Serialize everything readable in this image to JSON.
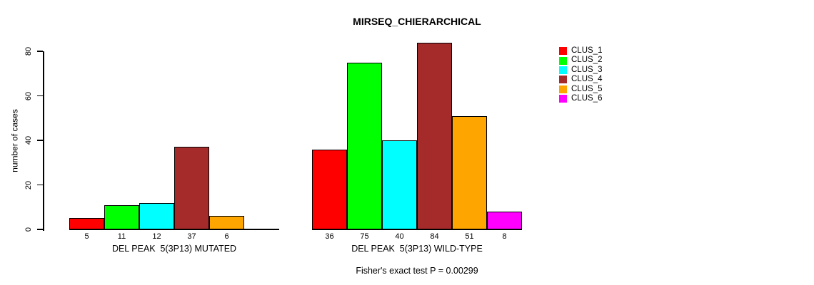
{
  "background": "#FFFFFF",
  "chart_data": {
    "type": "bar",
    "title": "MIRSEQ_CHIERARCHICAL",
    "ylabel": "number of cases",
    "xlabel": "",
    "yticks": [
      0,
      20,
      40,
      60,
      80
    ],
    "ylim": [
      0,
      84
    ],
    "grid": false,
    "legend_position": "right",
    "legend": [
      {
        "label": "CLUS_1",
        "color": "#FF0000"
      },
      {
        "label": "CLUS_2",
        "color": "#00FF00"
      },
      {
        "label": "CLUS_3",
        "color": "#00FFFF"
      },
      {
        "label": "CLUS_4",
        "color": "#A52A2A"
      },
      {
        "label": "CLUS_5",
        "color": "#FFA500"
      },
      {
        "label": "CLUS_6",
        "color": "#FF00FF"
      }
    ],
    "groups": [
      {
        "xlabel": "DEL PEAK  5(3P13) MUTATED",
        "bars": [
          {
            "cluster": "CLUS_1",
            "value": 5,
            "label": "5",
            "color": "#FF0000"
          },
          {
            "cluster": "CLUS_2",
            "value": 11,
            "label": "11",
            "color": "#00FF00"
          },
          {
            "cluster": "CLUS_3",
            "value": 12,
            "label": "12",
            "color": "#00FFFF"
          },
          {
            "cluster": "CLUS_4",
            "value": 37,
            "label": "37",
            "color": "#A52A2A"
          },
          {
            "cluster": "CLUS_5",
            "value": 6,
            "label": "6",
            "color": "#FFA500"
          },
          {
            "cluster": "CLUS_6",
            "value": 0,
            "label": "",
            "color": "#FF00FF"
          }
        ]
      },
      {
        "xlabel": "DEL PEAK  5(3P13) WILD-TYPE",
        "bars": [
          {
            "cluster": "CLUS_1",
            "value": 36,
            "label": "36",
            "color": "#FF0000"
          },
          {
            "cluster": "CLUS_2",
            "value": 75,
            "label": "75",
            "color": "#00FF00"
          },
          {
            "cluster": "CLUS_3",
            "value": 40,
            "label": "40",
            "color": "#00FFFF"
          },
          {
            "cluster": "CLUS_4",
            "value": 84,
            "label": "84",
            "color": "#A52A2A"
          },
          {
            "cluster": "CLUS_5",
            "value": 51,
            "label": "51",
            "color": "#FFA500"
          },
          {
            "cluster": "CLUS_6",
            "value": 8,
            "label": "8",
            "color": "#FF00FF"
          }
        ]
      }
    ],
    "annotation": "Fisher's exact test P = 0.00299"
  }
}
